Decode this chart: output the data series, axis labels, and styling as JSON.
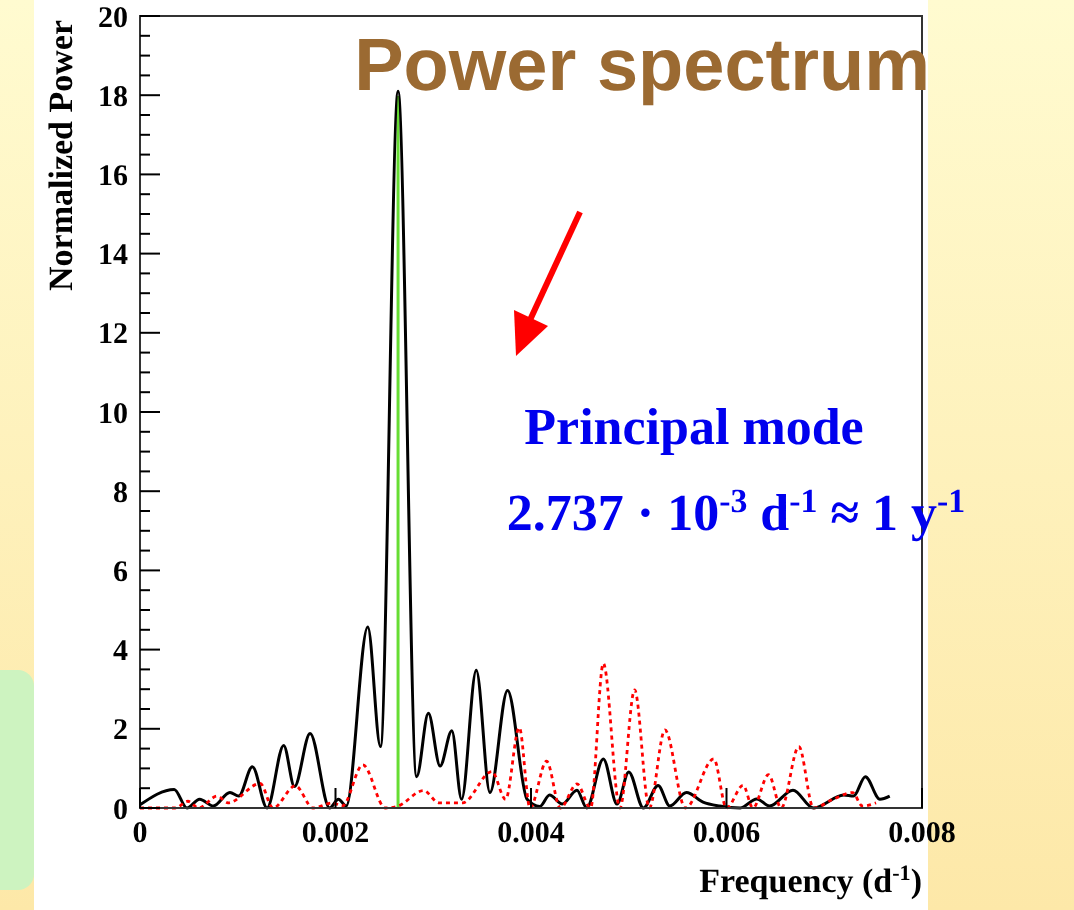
{
  "chart_data": {
    "type": "line",
    "title": "Power spectrum",
    "xlabel": "Frequency (d$^{-1}$)",
    "ylabel": "Normalized Power",
    "annotations": [
      "Principal mode",
      "2.737 · 10$^{-3}$ d$^{-1}$ ≈ 1 y$^{-1}$"
    ],
    "xlim": [
      0,
      0.008
    ],
    "ylim": [
      0,
      20
    ],
    "xticks": [
      0,
      0.002,
      0.004,
      0.006,
      0.008
    ],
    "yticks": [
      0,
      {
        "value": 0.5,
        "label": null
      },
      {
        "value": 1,
        "label": null
      },
      {
        "value": 1.5,
        "label": null
      },
      2,
      {
        "value": 2.5,
        "label": null
      },
      {
        "value": 3,
        "label": null
      },
      {
        "value": 3.5,
        "label": null
      },
      4,
      {
        "value": 4.5,
        "label": null
      },
      {
        "value": 5,
        "label": null
      },
      {
        "value": 5.5,
        "label": null
      },
      6,
      {
        "value": 6.5,
        "label": null
      },
      {
        "value": 7,
        "label": null
      },
      {
        "value": 7.5,
        "label": null
      },
      8,
      {
        "value": 8.5,
        "label": null
      },
      {
        "value": 9,
        "label": null
      },
      {
        "value": 9.5,
        "label": null
      },
      10,
      {
        "value": 10.5,
        "label": null
      },
      {
        "value": 11,
        "label": null
      },
      {
        "value": 11.5,
        "label": null
      },
      12,
      {
        "value": 12.5,
        "label": null
      },
      {
        "value": 13,
        "label": null
      },
      {
        "value": 13.5,
        "label": null
      },
      14,
      {
        "value": 14.5,
        "label": null
      },
      {
        "value": 15,
        "label": null
      },
      {
        "value": 15.5,
        "label": null
      },
      16,
      {
        "value": 16.5,
        "label": null
      },
      {
        "value": 17,
        "label": null
      },
      {
        "value": 17.5,
        "label": null
      },
      18,
      {
        "value": 18.5,
        "label": null
      },
      {
        "value": 19,
        "label": null
      },
      {
        "value": 19.5,
        "label": null
      },
      20
    ],
    "ref_lines": [
      {
        "axis": "x",
        "value": 0.00264,
        "color": "#66dd33"
      }
    ],
    "series": [
      {
        "color": "#000000",
        "line_style": "solid",
        "x": [
          0,
          0.00035,
          0.00048,
          0.00061,
          0.00075,
          0.00092,
          0.00101,
          0.00115,
          0.0013,
          0.00147,
          0.00158,
          0.00174,
          0.00194,
          0.00203,
          0.00211,
          0.00233,
          0.00246,
          0.00264,
          0.00283,
          0.00295,
          0.00307,
          0.00319,
          0.00329,
          0.00344,
          0.00358,
          0.00376,
          0.00396,
          0.00409,
          0.00419,
          0.00432,
          0.00447,
          0.00457,
          0.00474,
          0.00488,
          0.005,
          0.00515,
          0.0053,
          0.00542,
          0.00559,
          0.00576,
          0.00593,
          0.00614,
          0.00631,
          0.00644,
          0.00668,
          0.00689,
          0.0072,
          0.0073,
          0.00742,
          0.00757,
          0.00767
        ],
        "values": [
          0.08,
          0.47,
          0,
          0.22,
          0.05,
          0.39,
          0.3,
          1.04,
          0,
          1.58,
          0.54,
          1.88,
          0,
          0.22,
          0.05,
          4.57,
          1.55,
          18.1,
          0.79,
          2.39,
          1.06,
          1.95,
          0.22,
          3.48,
          0.39,
          2.97,
          0.22,
          0.04,
          0.33,
          0.1,
          0.45,
          0,
          1.24,
          0.1,
          0.91,
          0,
          0.57,
          0.05,
          0.39,
          0.15,
          0.05,
          0,
          0.23,
          0.05,
          0.45,
          0,
          0.33,
          0.3,
          0.79,
          0.22,
          0.3
        ]
      },
      {
        "color": "#ff0000",
        "line_style": "dotted",
        "x": [
          0,
          0.00036,
          0.00049,
          0.0006,
          0.00079,
          0.0009,
          0.00123,
          0.00136,
          0.00159,
          0.00177,
          0.00197,
          0.00207,
          0.00228,
          0.00251,
          0.00264,
          0.0029,
          0.00306,
          0.0033,
          0.0036,
          0.00374,
          0.00388,
          0.00399,
          0.00416,
          0.0043,
          0.00447,
          0.00461,
          0.00474,
          0.00491,
          0.00506,
          0.00521,
          0.00537,
          0.00558,
          0.00587,
          0.006,
          0.00617,
          0.00627,
          0.00643,
          0.00656,
          0.00674,
          0.00689,
          0.00709,
          0.00729,
          0.00739,
          0.00753
        ],
        "values": [
          0,
          0,
          0.17,
          0,
          0.3,
          0.13,
          0.62,
          0,
          0.56,
          0,
          0.13,
          0.05,
          1.09,
          0,
          0.05,
          0.44,
          0.13,
          0.13,
          0.92,
          0.22,
          2.03,
          0,
          1.18,
          0,
          0.61,
          0,
          3.65,
          0,
          2.98,
          0,
          1.97,
          0,
          1.24,
          0,
          0.57,
          0,
          0.84,
          0,
          1.55,
          0,
          0.22,
          0.39,
          0.05,
          0.13
        ]
      }
    ]
  }
}
